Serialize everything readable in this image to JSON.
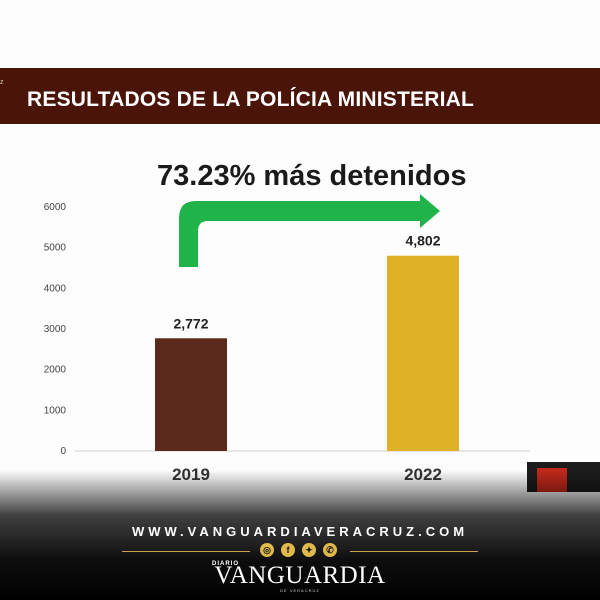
{
  "header": {
    "stub_text": "z",
    "title": "RESULTADOS DE LA POLÍCIA MINISTERIAL"
  },
  "headline": "73.23% más detenidos",
  "chart_data": {
    "type": "bar",
    "categories": [
      "2019",
      "2022"
    ],
    "values": [
      2772,
      4802
    ],
    "value_labels": [
      "2,772",
      "4,802"
    ],
    "ylim": [
      0,
      6000
    ],
    "yticks": [
      0,
      1000,
      2000,
      3000,
      4000,
      5000,
      6000
    ],
    "grid": false,
    "colors": [
      "#5c2a1c",
      "#dfb127"
    ],
    "arrow_color": "#1fb34a"
  },
  "footer": {
    "url": "WWW.VANGUARDIAVERACRUZ.COM",
    "brand_prefix": "DIARIO",
    "brand": "VANGUARDIA",
    "brand_sub": "DE VERACRUZ",
    "social_icons": [
      "instagram-icon",
      "facebook-icon",
      "twitter-icon",
      "whatsapp-icon"
    ],
    "accent_color": "#c9a24a"
  }
}
